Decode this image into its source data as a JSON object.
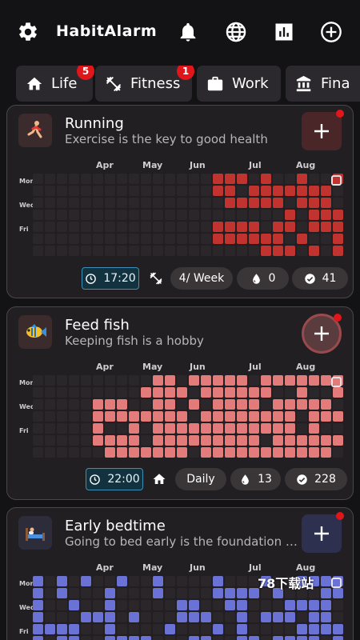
{
  "app": {
    "title": "HabitAlarm"
  },
  "header_icons": [
    "gear-icon",
    "bell-icon",
    "globe-icon",
    "bar-chart-icon",
    "add-circle-icon"
  ],
  "tabs": [
    {
      "label": "Life",
      "icon": "home-icon",
      "badge": "5"
    },
    {
      "label": "Fitness",
      "icon": "dumbbell-icon",
      "badge": "1"
    },
    {
      "label": "Work",
      "icon": "briefcase-icon",
      "badge": ""
    },
    {
      "label": "Fina",
      "icon": "bank-icon",
      "badge": ""
    }
  ],
  "colors": {
    "running": "#c0332f",
    "feed_fish": "#e47b7b",
    "early_bedtime": "#6a72d6",
    "empty_cell": "#2a2629",
    "badge": "#e0161b"
  },
  "habits": [
    {
      "title": "Running",
      "subtitle": "Exercise is the key to good health",
      "icon": "running-icon",
      "time": "17:20",
      "frequency_icon": "dumbbell-icon",
      "frequency": "4/ Week",
      "streak": "0",
      "completed": "41"
    },
    {
      "title": "Feed fish",
      "subtitle": "Keeping fish is a hobby",
      "icon": "fish-icon",
      "time": "22:00",
      "frequency_icon": "home-icon",
      "frequency": "Daily",
      "streak": "13",
      "completed": "228"
    },
    {
      "title": "Early bedtime",
      "subtitle": "Going to bed early is the foundation …",
      "icon": "bed-icon"
    }
  ],
  "months": [
    "Apr",
    "May",
    "Jun",
    "Jul",
    "Aug"
  ],
  "days": [
    "Mon",
    "Wed",
    "Fri"
  ],
  "watermark": "78下载站"
}
